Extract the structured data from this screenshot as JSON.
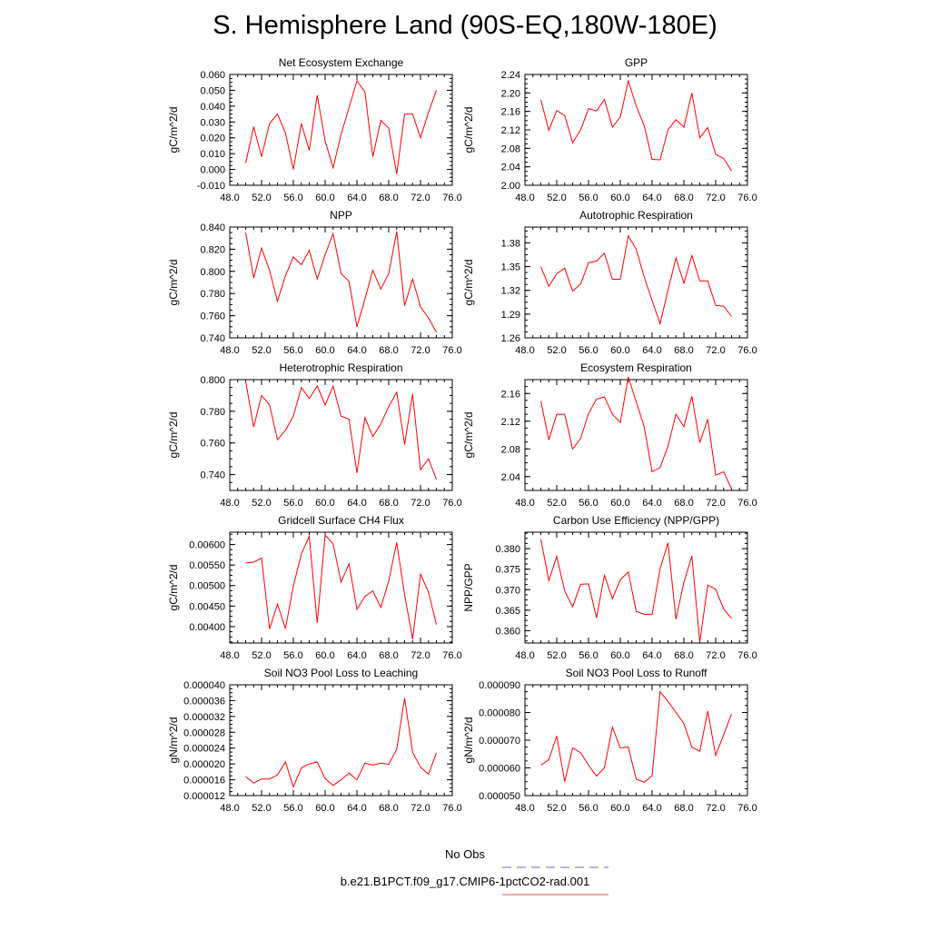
{
  "title": "S. Hemisphere Land (90S-EQ,180W-180E)",
  "legend": [
    {
      "label": "No Obs",
      "color": "#6b6bd6",
      "style": "dashed"
    },
    {
      "label": "b.e21.B1PCT.f09_g17.CMIP6-1pctCO2-rad.001",
      "color": "#e8524f",
      "style": "solid"
    }
  ],
  "chart_data": [
    {
      "type": "line",
      "title": "Net Ecosystem Exchange",
      "xlabel": "",
      "ylabel": "gC/m^2/d",
      "xlim": [
        48,
        76
      ],
      "ylim": [
        -0.01,
        0.06
      ],
      "xticks": [
        48,
        52,
        56,
        60,
        64,
        68,
        72,
        76
      ],
      "xtick_labels": [
        "48.0",
        "52.0",
        "56.0",
        "60.0",
        "64.0",
        "68.0",
        "72.0",
        "76.0"
      ],
      "yticks": [
        -0.01,
        0.0,
        0.01,
        0.02,
        0.03,
        0.04,
        0.05,
        0.06
      ],
      "ytick_labels": [
        "-0.010",
        "0.000",
        "0.010",
        "0.020",
        "0.030",
        "0.040",
        "0.050",
        "0.060"
      ],
      "grid": false,
      "series": [
        {
          "color": "#ff0000",
          "x": [
            50,
            51,
            52,
            53,
            54,
            55,
            56,
            57,
            58,
            59,
            60,
            61,
            62,
            63,
            64,
            65,
            66,
            67,
            68,
            69,
            70,
            71,
            72,
            73,
            74
          ],
          "y": [
            0.004,
            0.027,
            0.008,
            0.029,
            0.035,
            0.023,
            0.0,
            0.029,
            0.012,
            0.047,
            0.018,
            0.001,
            0.022,
            0.039,
            0.056,
            0.049,
            0.008,
            0.031,
            0.026,
            -0.003,
            0.035,
            0.035,
            0.02,
            0.036,
            0.05
          ]
        }
      ]
    },
    {
      "type": "line",
      "title": "GPP",
      "xlabel": "",
      "ylabel": "gC/m^2/d",
      "xlim": [
        48,
        76
      ],
      "ylim": [
        2.0,
        2.24
      ],
      "xticks": [
        48,
        52,
        56,
        60,
        64,
        68,
        72,
        76
      ],
      "xtick_labels": [
        "48.0",
        "52.0",
        "56.0",
        "60.0",
        "64.0",
        "68.0",
        "72.0",
        "76.0"
      ],
      "yticks": [
        2.0,
        2.04,
        2.08,
        2.12,
        2.16,
        2.2,
        2.24
      ],
      "ytick_labels": [
        "2.00",
        "2.04",
        "2.08",
        "2.12",
        "2.16",
        "2.20",
        "2.24"
      ],
      "grid": false,
      "series": [
        {
          "color": "#ff0000",
          "x": [
            50,
            51,
            52,
            53,
            54,
            55,
            56,
            57,
            58,
            59,
            60,
            61,
            62,
            63,
            64,
            65,
            66,
            67,
            68,
            69,
            70,
            71,
            72,
            73,
            74
          ],
          "y": [
            2.185,
            2.119,
            2.162,
            2.151,
            2.092,
            2.12,
            2.166,
            2.161,
            2.186,
            2.126,
            2.148,
            2.226,
            2.172,
            2.129,
            2.056,
            2.055,
            2.12,
            2.142,
            2.126,
            2.2,
            2.103,
            2.125,
            2.067,
            2.058,
            2.031
          ]
        }
      ]
    },
    {
      "type": "line",
      "title": "NPP",
      "xlabel": "",
      "ylabel": "gC/m^2/d",
      "xlim": [
        48,
        76
      ],
      "ylim": [
        0.74,
        0.84
      ],
      "xticks": [
        48,
        52,
        56,
        60,
        64,
        68,
        72,
        76
      ],
      "xtick_labels": [
        "48.0",
        "52.0",
        "56.0",
        "60.0",
        "64.0",
        "68.0",
        "72.0",
        "76.0"
      ],
      "yticks": [
        0.74,
        0.76,
        0.78,
        0.8,
        0.82,
        0.84
      ],
      "ytick_labels": [
        "0.740",
        "0.760",
        "0.780",
        "0.800",
        "0.820",
        "0.840"
      ],
      "grid": false,
      "series": [
        {
          "color": "#ff0000",
          "x": [
            50,
            51,
            52,
            53,
            54,
            55,
            56,
            57,
            58,
            59,
            60,
            61,
            62,
            63,
            64,
            65,
            66,
            67,
            68,
            69,
            70,
            71,
            72,
            73,
            74
          ],
          "y": [
            0.835,
            0.794,
            0.821,
            0.801,
            0.773,
            0.796,
            0.813,
            0.806,
            0.819,
            0.793,
            0.815,
            0.834,
            0.798,
            0.791,
            0.75,
            0.775,
            0.801,
            0.784,
            0.798,
            0.836,
            0.769,
            0.793,
            0.768,
            0.758,
            0.745
          ]
        }
      ]
    },
    {
      "type": "line",
      "title": "Autotrophic Respiration",
      "xlabel": "",
      "ylabel": "gC/m^2/d",
      "xlim": [
        48,
        76
      ],
      "ylim": [
        1.26,
        1.4
      ],
      "xticks": [
        48,
        52,
        56,
        60,
        64,
        68,
        72,
        76
      ],
      "xtick_labels": [
        "48.0",
        "52.0",
        "56.0",
        "60.0",
        "64.0",
        "68.0",
        "72.0",
        "76.0"
      ],
      "yticks": [
        1.26,
        1.29,
        1.32,
        1.35,
        1.38
      ],
      "ytick_labels": [
        "1.26",
        "1.29",
        "1.32",
        "1.35",
        "1.38"
      ],
      "grid": false,
      "series": [
        {
          "color": "#ff0000",
          "x": [
            50,
            51,
            52,
            53,
            54,
            55,
            56,
            57,
            58,
            59,
            60,
            61,
            62,
            63,
            64,
            65,
            66,
            67,
            68,
            69,
            70,
            71,
            72,
            73,
            74
          ],
          "y": [
            1.35,
            1.325,
            1.341,
            1.348,
            1.319,
            1.328,
            1.355,
            1.357,
            1.367,
            1.334,
            1.334,
            1.389,
            1.372,
            1.337,
            1.307,
            1.278,
            1.32,
            1.361,
            1.329,
            1.364,
            1.332,
            1.332,
            1.301,
            1.3,
            1.287
          ]
        }
      ]
    },
    {
      "type": "line",
      "title": "Heterotrophic Respiration",
      "xlabel": "",
      "ylabel": "gC/m^2/d",
      "xlim": [
        48,
        76
      ],
      "ylim": [
        0.73,
        0.8
      ],
      "xticks": [
        48,
        52,
        56,
        60,
        64,
        68,
        72,
        76
      ],
      "xtick_labels": [
        "48.0",
        "52.0",
        "56.0",
        "60.0",
        "64.0",
        "68.0",
        "72.0",
        "76.0"
      ],
      "yticks": [
        0.74,
        0.76,
        0.78,
        0.8
      ],
      "ytick_labels": [
        "0.740",
        "0.760",
        "0.780",
        "0.800"
      ],
      "grid": false,
      "series": [
        {
          "color": "#ff0000",
          "x": [
            50,
            51,
            52,
            53,
            54,
            55,
            56,
            57,
            58,
            59,
            60,
            61,
            62,
            63,
            64,
            65,
            66,
            67,
            68,
            69,
            70,
            71,
            72,
            73,
            74
          ],
          "y": [
            0.799,
            0.77,
            0.79,
            0.784,
            0.762,
            0.768,
            0.777,
            0.795,
            0.788,
            0.796,
            0.784,
            0.796,
            0.777,
            0.775,
            0.741,
            0.776,
            0.764,
            0.772,
            0.783,
            0.792,
            0.759,
            0.791,
            0.743,
            0.75,
            0.737
          ]
        }
      ]
    },
    {
      "type": "line",
      "title": "Ecosystem Respiration",
      "xlabel": "",
      "ylabel": "gC/m^2/d",
      "xlim": [
        48,
        76
      ],
      "ylim": [
        2.02,
        2.18
      ],
      "xticks": [
        48,
        52,
        56,
        60,
        64,
        68,
        72,
        76
      ],
      "xtick_labels": [
        "48.0",
        "52.0",
        "56.0",
        "60.0",
        "64.0",
        "68.0",
        "72.0",
        "76.0"
      ],
      "yticks": [
        2.04,
        2.08,
        2.12,
        2.16
      ],
      "ytick_labels": [
        "2.04",
        "2.08",
        "2.12",
        "2.16"
      ],
      "grid": false,
      "series": [
        {
          "color": "#ff0000",
          "x": [
            50,
            51,
            52,
            53,
            54,
            55,
            56,
            57,
            58,
            59,
            60,
            61,
            62,
            63,
            64,
            65,
            66,
            67,
            68,
            69,
            70,
            71,
            72,
            73,
            74
          ],
          "y": [
            2.149,
            2.093,
            2.13,
            2.13,
            2.08,
            2.095,
            2.131,
            2.152,
            2.155,
            2.13,
            2.118,
            2.184,
            2.148,
            2.112,
            2.047,
            2.053,
            2.084,
            2.13,
            2.112,
            2.156,
            2.089,
            2.123,
            2.042,
            2.047,
            2.022
          ]
        }
      ]
    },
    {
      "type": "line",
      "title": "Gridcell Surface CH4 Flux",
      "xlabel": "",
      "ylabel": "gC/m^2/d",
      "xlim": [
        48,
        76
      ],
      "ylim": [
        0.0036,
        0.0063
      ],
      "xticks": [
        48,
        52,
        56,
        60,
        64,
        68,
        72,
        76
      ],
      "xtick_labels": [
        "48.0",
        "52.0",
        "56.0",
        "60.0",
        "64.0",
        "68.0",
        "72.0",
        "76.0"
      ],
      "yticks": [
        0.004,
        0.0045,
        0.005,
        0.0055,
        0.006
      ],
      "ytick_labels": [
        "0.00400",
        "0.00450",
        "0.00500",
        "0.00550",
        "0.00600"
      ],
      "grid": false,
      "series": [
        {
          "color": "#ff0000",
          "x": [
            50,
            51,
            52,
            53,
            54,
            55,
            56,
            57,
            58,
            59,
            60,
            61,
            62,
            63,
            64,
            65,
            66,
            67,
            68,
            69,
            70,
            71,
            72,
            73,
            74
          ],
          "y": [
            0.00555,
            0.00557,
            0.00567,
            0.00394,
            0.00455,
            0.00395,
            0.00499,
            0.00577,
            0.0062,
            0.00409,
            0.00623,
            0.00602,
            0.00508,
            0.00553,
            0.00442,
            0.00473,
            0.00487,
            0.00447,
            0.00511,
            0.00605,
            0.00478,
            0.00369,
            0.00528,
            0.00484,
            0.00405
          ]
        }
      ]
    },
    {
      "type": "line",
      "title": "Carbon Use Efficiency (NPP/GPP)",
      "xlabel": "",
      "ylabel": "NPP/GPP",
      "xlim": [
        48,
        76
      ],
      "ylim": [
        0.357,
        0.384
      ],
      "xticks": [
        48,
        52,
        56,
        60,
        64,
        68,
        72,
        76
      ],
      "xtick_labels": [
        "48.0",
        "52.0",
        "56.0",
        "60.0",
        "64.0",
        "68.0",
        "72.0",
        "76.0"
      ],
      "yticks": [
        0.36,
        0.365,
        0.37,
        0.375,
        0.38
      ],
      "ytick_labels": [
        "0.360",
        "0.365",
        "0.370",
        "0.375",
        "0.380"
      ],
      "grid": false,
      "series": [
        {
          "color": "#ff0000",
          "x": [
            50,
            51,
            52,
            53,
            54,
            55,
            56,
            57,
            58,
            59,
            60,
            61,
            62,
            63,
            64,
            65,
            66,
            67,
            68,
            69,
            70,
            71,
            72,
            73,
            74
          ],
          "y": [
            0.3823,
            0.3722,
            0.3781,
            0.3697,
            0.3658,
            0.3713,
            0.3714,
            0.3631,
            0.3735,
            0.3678,
            0.3724,
            0.3743,
            0.3647,
            0.364,
            0.364,
            0.3751,
            0.3814,
            0.3628,
            0.3718,
            0.3782,
            0.3572,
            0.3711,
            0.3701,
            0.3653,
            0.363
          ]
        }
      ]
    },
    {
      "type": "line",
      "title": "Soil NO3 Pool Loss to Leaching",
      "xlabel": "",
      "ylabel": "gN/m^2/d",
      "xlim": [
        48,
        76
      ],
      "ylim": [
        1.2e-05,
        4e-05
      ],
      "xticks": [
        48,
        52,
        56,
        60,
        64,
        68,
        72,
        76
      ],
      "xtick_labels": [
        "48.0",
        "52.0",
        "56.0",
        "60.0",
        "64.0",
        "68.0",
        "72.0",
        "76.0"
      ],
      "yticks": [
        1.2e-05,
        1.6e-05,
        2e-05,
        2.4e-05,
        2.8e-05,
        3.2e-05,
        3.6e-05,
        4e-05
      ],
      "ytick_labels": [
        "0.000012",
        "0.000016",
        "0.000020",
        "0.000024",
        "0.000028",
        "0.000032",
        "0.000036",
        "0.000040"
      ],
      "grid": false,
      "series": [
        {
          "color": "#ff0000",
          "x": [
            50,
            51,
            52,
            53,
            54,
            55,
            56,
            57,
            58,
            59,
            60,
            61,
            62,
            63,
            64,
            65,
            66,
            67,
            68,
            69,
            70,
            71,
            72,
            73,
            74
          ],
          "y": [
            1.68e-05,
            1.52e-05,
            1.62e-05,
            1.62e-05,
            1.72e-05,
            2.05e-05,
            1.42e-05,
            1.9e-05,
            2e-05,
            2.05e-05,
            1.63e-05,
            1.46e-05,
            1.6e-05,
            1.77e-05,
            1.6e-05,
            2.02e-05,
            1.97e-05,
            2.02e-05,
            1.99e-05,
            2.37e-05,
            3.67e-05,
            2.29e-05,
            1.92e-05,
            1.74e-05,
            2.28e-05
          ]
        }
      ]
    },
    {
      "type": "line",
      "title": "Soil NO3 Pool Loss to Runoff",
      "xlabel": "",
      "ylabel": "gN/m^2/d",
      "xlim": [
        48,
        76
      ],
      "ylim": [
        5e-05,
        9e-05
      ],
      "xticks": [
        48,
        52,
        56,
        60,
        64,
        68,
        72,
        76
      ],
      "xtick_labels": [
        "48.0",
        "52.0",
        "56.0",
        "60.0",
        "64.0",
        "68.0",
        "72.0",
        "76.0"
      ],
      "yticks": [
        5e-05,
        6e-05,
        7e-05,
        8e-05,
        9e-05
      ],
      "ytick_labels": [
        "0.000050",
        "0.000060",
        "0.000070",
        "0.000080",
        "0.000090"
      ],
      "grid": false,
      "series": [
        {
          "color": "#ff0000",
          "x": [
            50,
            51,
            52,
            53,
            54,
            55,
            56,
            57,
            58,
            59,
            60,
            61,
            62,
            63,
            64,
            65,
            66,
            67,
            68,
            69,
            70,
            71,
            72,
            73,
            74
          ],
          "y": [
            6.1e-05,
            6.3e-05,
            7.15e-05,
            5.5e-05,
            6.72e-05,
            6.55e-05,
            6.1e-05,
            5.7e-05,
            6e-05,
            7.48e-05,
            6.72e-05,
            6.75e-05,
            5.6e-05,
            5.48e-05,
            5.72e-05,
            8.75e-05,
            8.4e-05,
            8e-05,
            7.6e-05,
            6.75e-05,
            6.6e-05,
            8.05e-05,
            6.45e-05,
            7.2e-05,
            7.95e-05
          ]
        }
      ]
    }
  ]
}
